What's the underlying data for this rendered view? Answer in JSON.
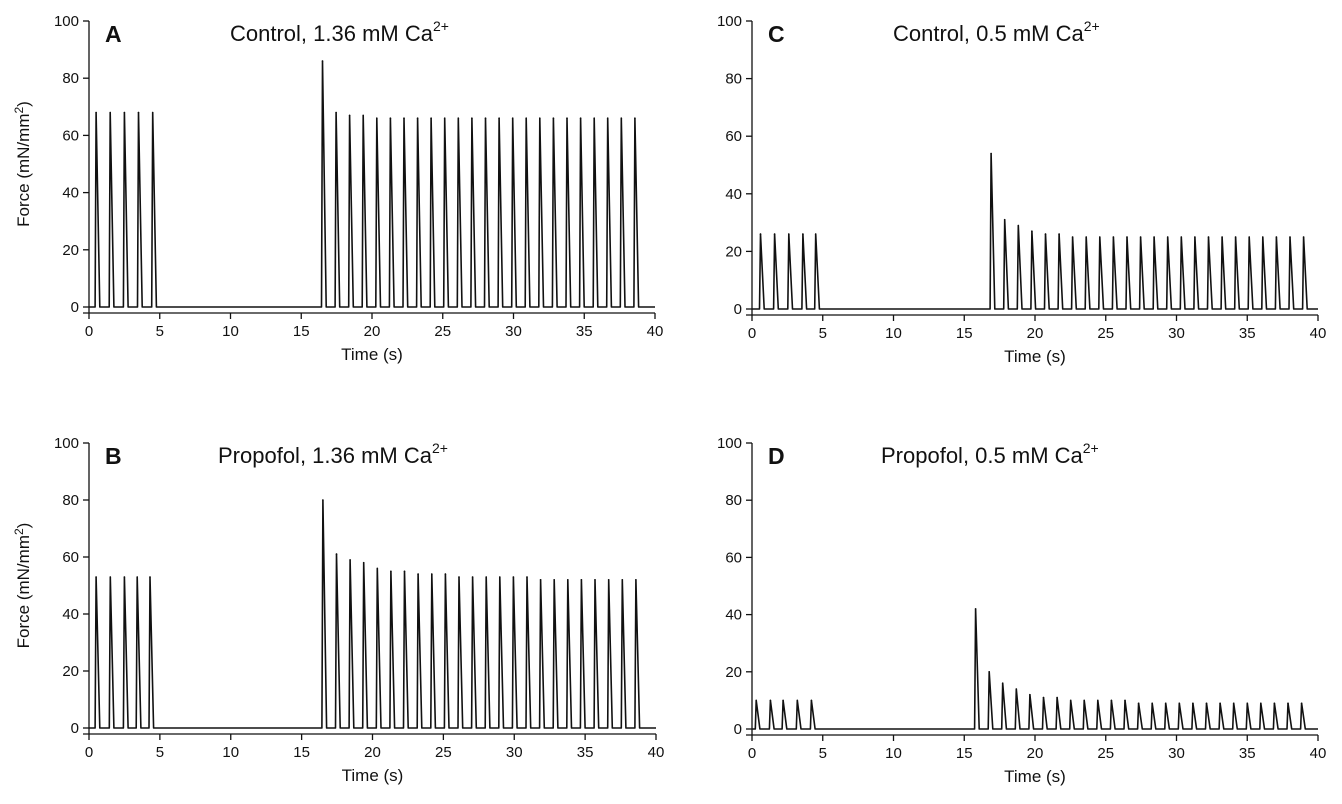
{
  "figure": {
    "panels": [
      {
        "letter": "A",
        "title_main": "Control, 1.36 mM Ca",
        "title_sup": "2+"
      },
      {
        "letter": "C",
        "title_main": "Control, 0.5 mM Ca",
        "title_sup": "2+"
      },
      {
        "letter": "B",
        "title_main": "Propofol, 1.36 mM Ca",
        "title_sup": "2+"
      },
      {
        "letter": "D",
        "title_main": "Propofol, 0.5 mM Ca",
        "title_sup": "2+"
      }
    ],
    "ylabel": "Force (mN/mm²)",
    "xlabel": "Time (s)"
  },
  "chart_data": [
    {
      "type": "line",
      "panel": "A",
      "title": "Control, 1.36 mM Ca2+",
      "xlabel": "Time (s)",
      "ylabel": "Force (mN/mm2)",
      "xlim": [
        0,
        40
      ],
      "ylim": [
        0,
        100
      ],
      "x_ticks": [
        0,
        5,
        10,
        15,
        20,
        25,
        30,
        35,
        40
      ],
      "y_ticks": [
        0,
        20,
        40,
        60,
        80,
        100
      ],
      "baseline": 0,
      "pre_pause_twitches": {
        "times": [
          0.5,
          1.5,
          2.5,
          3.5,
          4.5
        ],
        "peaks": [
          68,
          68,
          68,
          68,
          68
        ]
      },
      "post_pause_twitches": {
        "start": 16.5,
        "interval": 0.96,
        "peaks": [
          86,
          68,
          67,
          67,
          66,
          66,
          66,
          66,
          66,
          66,
          66,
          66,
          66,
          66,
          66,
          66,
          66,
          66,
          66,
          66,
          66,
          66,
          66,
          66
        ]
      }
    },
    {
      "type": "line",
      "panel": "C",
      "title": "Control, 0.5 mM Ca2+",
      "xlabel": "Time (s)",
      "ylabel": "",
      "xlim": [
        0,
        40
      ],
      "ylim": [
        0,
        100
      ],
      "x_ticks": [
        0,
        5,
        10,
        15,
        20,
        25,
        30,
        35,
        40
      ],
      "y_ticks": [
        0,
        20,
        40,
        60,
        80,
        100
      ],
      "baseline": 0,
      "pre_pause_twitches": {
        "times": [
          0.6,
          1.6,
          2.6,
          3.6,
          4.5
        ],
        "peaks": [
          26,
          26,
          26,
          26,
          26
        ]
      },
      "post_pause_twitches": {
        "start": 16.9,
        "interval": 0.96,
        "peaks": [
          54,
          31,
          29,
          27,
          26,
          26,
          25,
          25,
          25,
          25,
          25,
          25,
          25,
          25,
          25,
          25,
          25,
          25,
          25,
          25,
          25,
          25,
          25,
          25
        ]
      }
    },
    {
      "type": "line",
      "panel": "B",
      "title": "Propofol, 1.36 mM Ca2+",
      "xlabel": "Time (s)",
      "ylabel": "Force (mN/mm2)",
      "xlim": [
        0,
        40
      ],
      "ylim": [
        0,
        100
      ],
      "x_ticks": [
        0,
        5,
        10,
        15,
        20,
        25,
        30,
        35,
        40
      ],
      "y_ticks": [
        0,
        20,
        40,
        60,
        80,
        100
      ],
      "baseline": 0,
      "pre_pause_twitches": {
        "times": [
          0.5,
          1.5,
          2.5,
          3.4,
          4.3
        ],
        "peaks": [
          53,
          53,
          53,
          53,
          53
        ]
      },
      "post_pause_twitches": {
        "start": 16.5,
        "interval": 0.96,
        "peaks": [
          80,
          61,
          59,
          58,
          56,
          55,
          55,
          54,
          54,
          54,
          53,
          53,
          53,
          53,
          53,
          53,
          52,
          52,
          52,
          52,
          52,
          52,
          52,
          52
        ]
      }
    },
    {
      "type": "line",
      "panel": "D",
      "title": "Propofol, 0.5 mM Ca2+",
      "xlabel": "Time (s)",
      "ylabel": "",
      "xlim": [
        0,
        40
      ],
      "ylim": [
        0,
        100
      ],
      "x_ticks": [
        0,
        5,
        10,
        15,
        20,
        25,
        30,
        35,
        40
      ],
      "y_ticks": [
        0,
        20,
        40,
        60,
        80,
        100
      ],
      "baseline": 0,
      "pre_pause_twitches": {
        "times": [
          0.3,
          1.3,
          2.2,
          3.2,
          4.2
        ],
        "peaks": [
          10,
          10,
          10,
          10,
          10
        ]
      },
      "post_pause_twitches": {
        "start": 15.8,
        "interval": 0.96,
        "peaks": [
          42,
          20,
          16,
          14,
          12,
          11,
          11,
          10,
          10,
          10,
          10,
          10,
          9,
          9,
          9,
          9,
          9,
          9,
          9,
          9,
          9,
          9,
          9,
          9,
          9
        ]
      }
    }
  ]
}
